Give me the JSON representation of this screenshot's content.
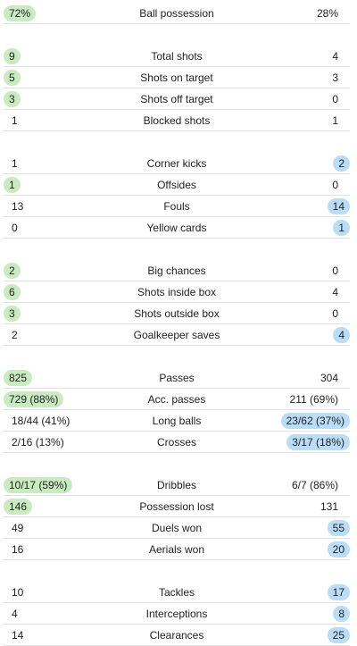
{
  "stats": [
    {
      "label": "Ball possession",
      "home": "72%",
      "away": "28%",
      "hi": "home"
    },
    {
      "label": "Total shots",
      "home": "9",
      "away": "4",
      "hi": "home"
    },
    {
      "label": "Shots on target",
      "home": "5",
      "away": "3",
      "hi": "home"
    },
    {
      "label": "Shots off target",
      "home": "3",
      "away": "0",
      "hi": "home"
    },
    {
      "label": "Blocked shots",
      "home": "1",
      "away": "1",
      "hi": ""
    },
    {
      "label": "Corner kicks",
      "home": "1",
      "away": "2",
      "hi": "away"
    },
    {
      "label": "Offsides",
      "home": "1",
      "away": "0",
      "hi": "home"
    },
    {
      "label": "Fouls",
      "home": "13",
      "away": "14",
      "hi": "away"
    },
    {
      "label": "Yellow cards",
      "home": "0",
      "away": "1",
      "hi": "away"
    },
    {
      "label": "Big chances",
      "home": "2",
      "away": "0",
      "hi": "home"
    },
    {
      "label": "Shots inside box",
      "home": "6",
      "away": "4",
      "hi": "home"
    },
    {
      "label": "Shots outside box",
      "home": "3",
      "away": "0",
      "hi": "home"
    },
    {
      "label": "Goalkeeper saves",
      "home": "2",
      "away": "4",
      "hi": "away"
    },
    {
      "label": "Passes",
      "home": "825",
      "away": "304",
      "hi": "home"
    },
    {
      "label": "Acc. passes",
      "home": "729 (88%)",
      "away": "211 (69%)",
      "hi": "home"
    },
    {
      "label": "Long balls",
      "home": "18/44 (41%)",
      "away": "23/62 (37%)",
      "hi": "away"
    },
    {
      "label": "Crosses",
      "home": "2/16 (13%)",
      "away": "3/17 (18%)",
      "hi": "away"
    },
    {
      "label": "Dribbles",
      "home": "10/17 (59%)",
      "away": "6/7 (86%)",
      "hi": "home"
    },
    {
      "label": "Possession lost",
      "home": "146",
      "away": "131",
      "hi": "home"
    },
    {
      "label": "Duels won",
      "home": "49",
      "away": "55",
      "hi": "away"
    },
    {
      "label": "Aerials won",
      "home": "16",
      "away": "20",
      "hi": "away"
    },
    {
      "label": "Tackles",
      "home": "10",
      "away": "17",
      "hi": "away"
    },
    {
      "label": "Interceptions",
      "home": "4",
      "away": "8",
      "hi": "away"
    },
    {
      "label": "Clearances",
      "home": "14",
      "away": "25",
      "hi": "away"
    }
  ],
  "colors": {
    "home_highlight": "#c8ebc0",
    "away_highlight": "#b9dcf7"
  }
}
